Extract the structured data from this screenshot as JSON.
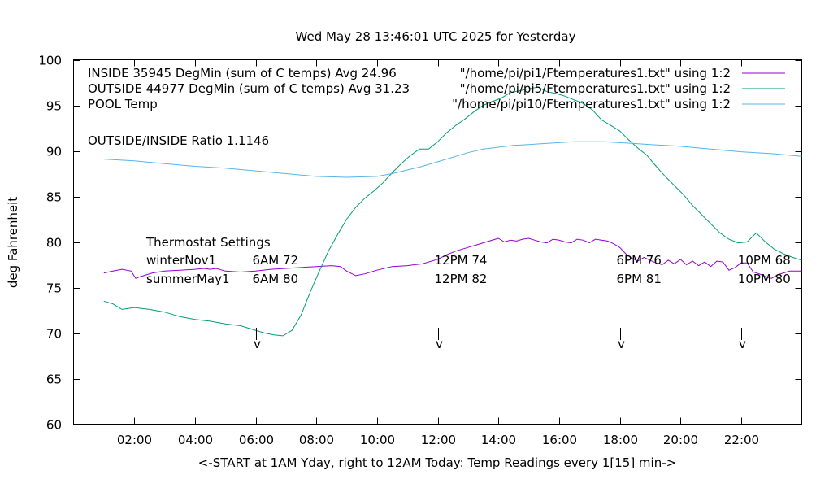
{
  "chart_data": {
    "type": "line",
    "title": "Wed May 28 13:46:01 UTC 2025 for Yesterday",
    "xlabel": "<-START at 1AM Yday, right to 12AM Today:  Temp Readings every 1[15] min->",
    "ylabel": "deg Fahrenheit",
    "xlim": [
      0,
      24
    ],
    "ylim": [
      60,
      100
    ],
    "x_ticks": [
      2,
      4,
      6,
      8,
      10,
      12,
      14,
      16,
      18,
      20,
      22
    ],
    "x_tick_labels": [
      "02:00",
      "04:00",
      "06:00",
      "08:00",
      "10:00",
      "12:00",
      "14:00",
      "16:00",
      "18:00",
      "20:00",
      "22:00"
    ],
    "y_ticks": [
      60,
      65,
      70,
      75,
      80,
      85,
      90,
      95,
      100
    ],
    "y_tick_labels": [
      "60",
      "65",
      "70",
      "75",
      "80",
      "85",
      "90",
      "95",
      "100"
    ],
    "grid": false,
    "legend_position": "top-right",
    "series": [
      {
        "name": "INSIDE 35945 DegMin (sum of C temps) Avg 24.96",
        "legend_spec": "\"/home/pi/pi1/Ftemperatures1.txt\" using 1:2",
        "color": "#9400d3",
        "x": [
          1.0,
          1.3,
          1.6,
          1.9,
          2.05,
          2.2,
          2.6,
          3.0,
          3.5,
          4.0,
          4.3,
          4.5,
          4.7,
          5.0,
          5.5,
          6.0,
          6.5,
          7.0,
          7.5,
          8.0,
          8.5,
          8.8,
          9.0,
          9.3,
          9.6,
          10.0,
          10.5,
          11.0,
          11.5,
          12.0,
          12.3,
          12.6,
          13.0,
          13.3,
          13.6,
          13.9,
          14.0,
          14.2,
          14.4,
          14.6,
          14.8,
          15.0,
          15.2,
          15.4,
          15.6,
          15.8,
          16.0,
          16.2,
          16.4,
          16.6,
          16.8,
          17.0,
          17.2,
          17.4,
          17.6,
          17.8,
          18.0,
          18.2,
          18.4,
          18.6,
          18.8,
          19.0,
          19.2,
          19.4,
          19.6,
          19.8,
          20.0,
          20.2,
          20.4,
          20.6,
          20.8,
          21.0,
          21.2,
          21.4,
          21.6,
          21.8,
          22.0,
          22.2,
          22.4,
          22.6,
          22.8,
          23.0,
          23.2,
          23.4,
          23.6,
          23.8,
          24.0
        ],
        "y": [
          76.6,
          76.8,
          77.0,
          76.8,
          76.0,
          76.2,
          76.6,
          76.8,
          76.9,
          77.0,
          77.1,
          77.0,
          77.1,
          76.8,
          76.7,
          76.8,
          77.0,
          77.1,
          77.2,
          77.3,
          77.4,
          77.3,
          76.8,
          76.3,
          76.5,
          76.9,
          77.3,
          77.4,
          77.6,
          78.1,
          78.6,
          79.0,
          79.4,
          79.7,
          80.0,
          80.3,
          80.4,
          80.0,
          80.2,
          80.1,
          80.3,
          80.4,
          80.2,
          80.0,
          79.9,
          80.3,
          80.2,
          80.0,
          79.9,
          80.3,
          80.2,
          79.9,
          80.3,
          80.2,
          80.1,
          79.8,
          79.4,
          78.7,
          78.2,
          77.9,
          78.3,
          78.0,
          77.7,
          77.5,
          78.0,
          77.6,
          78.1,
          77.5,
          77.9,
          77.4,
          77.8,
          77.3,
          77.9,
          77.8,
          76.9,
          77.2,
          77.7,
          77.7,
          76.7,
          76.5,
          76.2,
          76.0,
          76.4,
          76.6,
          76.8,
          76.8,
          76.8
        ]
      },
      {
        "name": "OUTSIDE 44977 DegMin (sum of C temps) Avg 31.23",
        "legend_spec": "\"/home/pi/pi5/Ftemperatures1.txt\" using 1:2",
        "color": "#009e73",
        "x": [
          1.0,
          1.3,
          1.6,
          2.0,
          2.5,
          3.0,
          3.5,
          4.0,
          4.5,
          5.0,
          5.5,
          6.0,
          6.3,
          6.6,
          6.9,
          7.2,
          7.5,
          7.8,
          8.1,
          8.4,
          8.7,
          9.0,
          9.3,
          9.6,
          9.9,
          10.2,
          10.5,
          10.8,
          11.1,
          11.4,
          11.7,
          12.0,
          12.3,
          12.6,
          12.9,
          13.2,
          13.5,
          13.8,
          14.1,
          14.4,
          14.7,
          15.0,
          15.3,
          15.6,
          15.9,
          16.2,
          16.5,
          16.8,
          17.1,
          17.4,
          17.7,
          18.0,
          18.3,
          18.6,
          18.9,
          19.2,
          19.5,
          19.8,
          20.1,
          20.4,
          20.7,
          21.0,
          21.3,
          21.6,
          21.9,
          22.2,
          22.5,
          22.8,
          23.1,
          23.4,
          23.7,
          24.0
        ],
        "y": [
          73.5,
          73.2,
          72.6,
          72.8,
          72.6,
          72.3,
          71.8,
          71.5,
          71.3,
          71.0,
          70.8,
          70.3,
          70.0,
          69.8,
          69.7,
          70.3,
          72.0,
          74.5,
          76.8,
          79.0,
          80.8,
          82.5,
          83.8,
          84.8,
          85.6,
          86.5,
          87.6,
          88.6,
          89.5,
          90.2,
          90.2,
          91.0,
          92.0,
          92.8,
          93.5,
          94.3,
          95.0,
          95.4,
          95.8,
          96.4,
          96.6,
          96.8,
          97.0,
          96.5,
          96.3,
          96.0,
          95.6,
          95.2,
          94.5,
          93.4,
          92.8,
          92.2,
          91.2,
          90.3,
          89.5,
          88.3,
          87.2,
          86.2,
          85.2,
          84.0,
          83.0,
          82.0,
          81.0,
          80.3,
          79.9,
          80.0,
          81.0,
          80.0,
          79.2,
          78.7,
          78.3,
          78.0
        ]
      },
      {
        "name": "POOL Temp",
        "legend_spec": "\"/home/pi/pi10/Ftemperatures1.txt\" using 1:2",
        "color": "#56b4e9",
        "x": [
          1.0,
          2.0,
          3.0,
          4.0,
          5.0,
          6.0,
          7.0,
          8.0,
          9.0,
          10.0,
          10.5,
          11.0,
          11.5,
          12.0,
          12.5,
          13.0,
          13.5,
          14.0,
          14.5,
          15.0,
          15.5,
          16.0,
          16.5,
          17.0,
          17.5,
          18.0,
          18.5,
          19.0,
          19.5,
          20.0,
          21.0,
          22.0,
          23.0,
          24.0
        ],
        "y": [
          89.1,
          88.9,
          88.6,
          88.3,
          88.1,
          87.8,
          87.5,
          87.2,
          87.1,
          87.2,
          87.5,
          87.9,
          88.3,
          88.8,
          89.3,
          89.8,
          90.2,
          90.4,
          90.6,
          90.7,
          90.8,
          90.9,
          91.0,
          91.0,
          91.0,
          90.9,
          90.8,
          90.7,
          90.6,
          90.5,
          90.2,
          89.9,
          89.7,
          89.4
        ]
      }
    ],
    "annotations": {
      "ratio": "OUTSIDE/INSIDE Ratio 1.1146",
      "thermostat_title": "Thermostat Settings",
      "thermostat_rows": [
        {
          "label": "winterNov1",
          "values": [
            "6AM 72",
            "12PM 74",
            "6PM 76",
            "10PM 68"
          ]
        },
        {
          "label": "summerMay1",
          "values": [
            "6AM 80",
            "12PM 82",
            "6PM 81",
            "10PM 80"
          ]
        }
      ],
      "marker_times": [
        6,
        12,
        18,
        22
      ],
      "marker_glyph": "v"
    }
  }
}
